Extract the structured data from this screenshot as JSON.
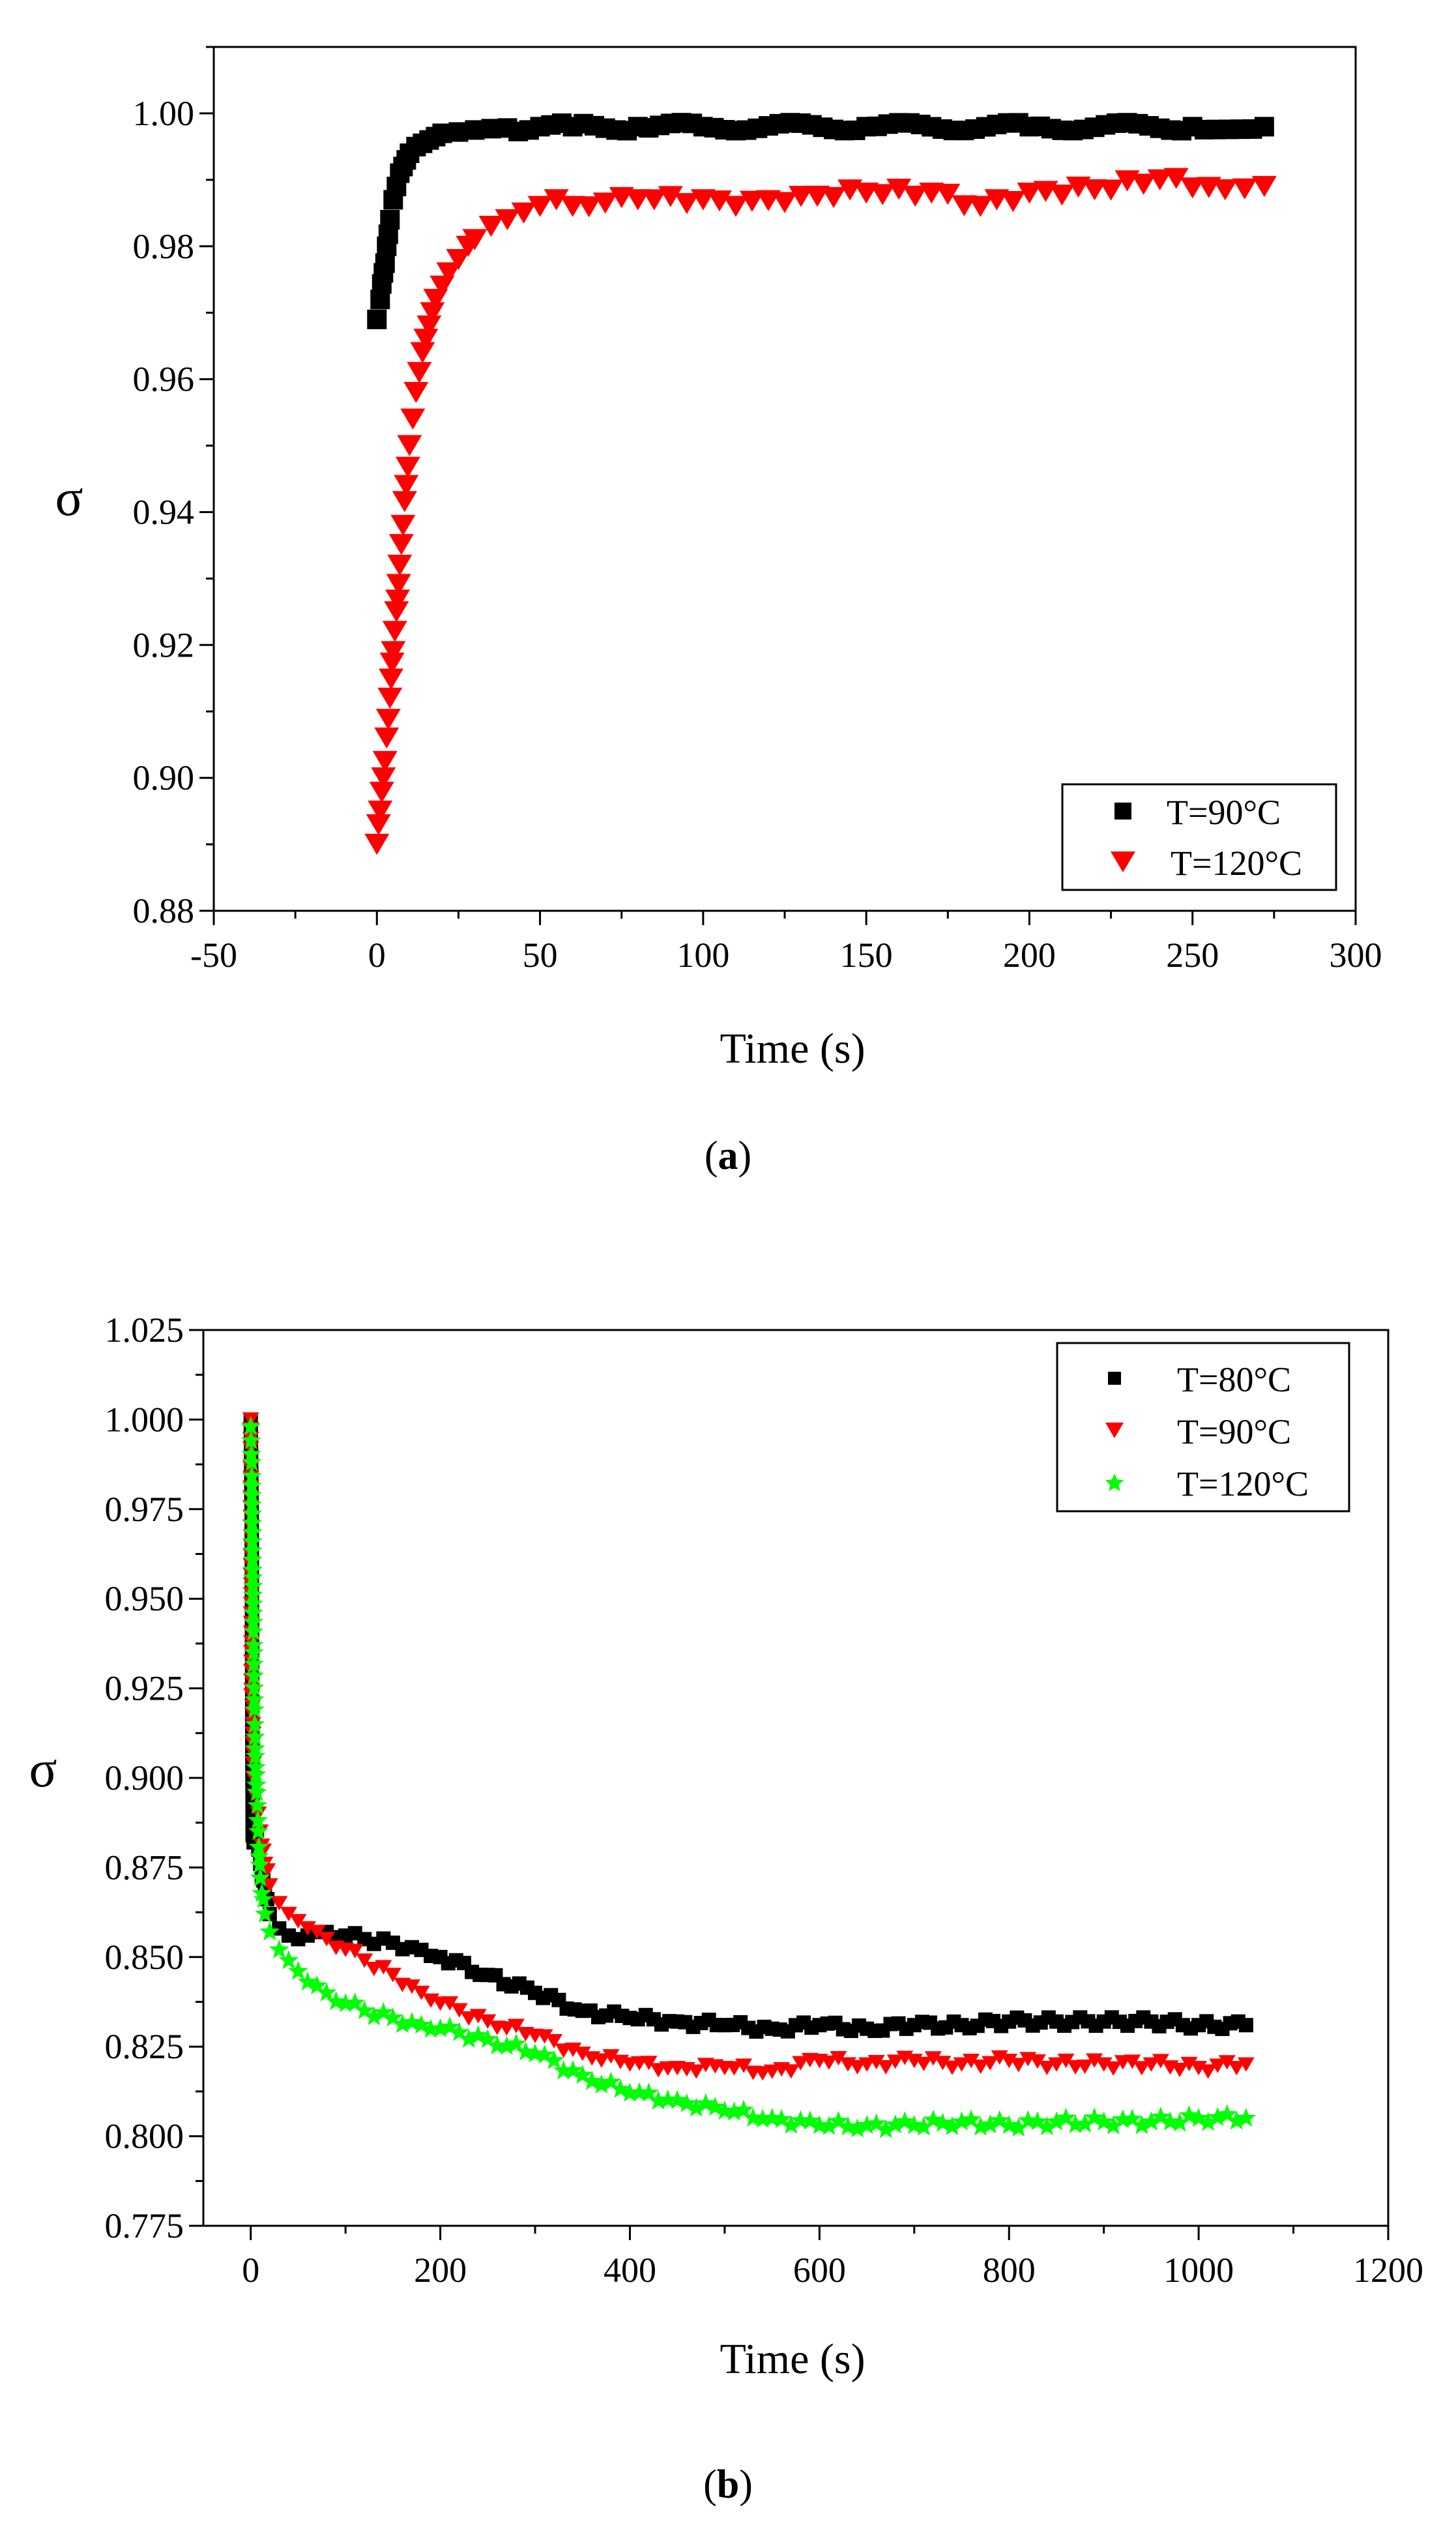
{
  "panels": [
    {
      "caption_open": "(",
      "caption_letter": "a",
      "caption_close": ")"
    },
    {
      "caption_open": "(",
      "caption_letter": "b",
      "caption_close": ")"
    }
  ],
  "chart_data": [
    {
      "type": "scatter",
      "title": "",
      "xlabel": "Time (s)",
      "ylabel": "σ",
      "xlim": [
        -50,
        300
      ],
      "ylim": [
        0.88,
        1.01
      ],
      "xticks": [
        -50,
        0,
        50,
        100,
        150,
        200,
        250,
        300
      ],
      "xtick_labels": [
        "-50",
        "0",
        "50",
        "100",
        "150",
        "200",
        "250",
        "300"
      ],
      "yticks": [
        0.88,
        0.9,
        0.92,
        0.94,
        0.96,
        0.98,
        1.0
      ],
      "ytick_labels": [
        "0.88",
        "0.90",
        "0.92",
        "0.94",
        "0.96",
        "0.98",
        "1.00"
      ],
      "legend_position": "bottom-right",
      "series": [
        {
          "name": "T=90°C",
          "marker": "square",
          "color": "#000000",
          "x": [
            0,
            1,
            2,
            3,
            4,
            5,
            6,
            7,
            8,
            9,
            10,
            12,
            14,
            16,
            18,
            20,
            25,
            30,
            35,
            40,
            50,
            60,
            80,
            100,
            150,
            200,
            250,
            272
          ],
          "y": [
            0.969,
            0.972,
            0.976,
            0.98,
            0.984,
            0.987,
            0.989,
            0.991,
            0.992,
            0.993,
            0.994,
            0.995,
            0.9955,
            0.996,
            0.9965,
            0.997,
            0.9972,
            0.9975,
            0.9977,
            0.9978,
            0.998,
            0.998,
            0.998,
            0.998,
            0.998,
            0.998,
            0.998,
            0.998
          ]
        },
        {
          "name": "T=120°C",
          "marker": "triangle-down",
          "color": "#ff0000",
          "x": [
            0,
            1,
            2,
            3,
            4,
            5,
            6,
            7,
            8,
            9,
            10,
            11,
            12,
            13,
            14,
            15,
            16,
            17,
            18,
            20,
            22,
            25,
            28,
            30,
            35,
            40,
            45,
            50,
            55,
            60,
            70,
            80,
            100,
            110,
            130,
            150,
            170,
            185,
            200,
            220,
            240,
            260,
            272
          ],
          "y": [
            0.89,
            0.895,
            0.9,
            0.906,
            0.912,
            0.919,
            0.925,
            0.932,
            0.938,
            0.944,
            0.95,
            0.954,
            0.958,
            0.961,
            0.964,
            0.966,
            0.968,
            0.97,
            0.972,
            0.974,
            0.976,
            0.978,
            0.98,
            0.981,
            0.983,
            0.984,
            0.985,
            0.986,
            0.987,
            0.986,
            0.9865,
            0.987,
            0.987,
            0.986,
            0.9875,
            0.988,
            0.988,
            0.986,
            0.988,
            0.9885,
            0.99,
            0.9885,
            0.989
          ]
        }
      ]
    },
    {
      "type": "scatter",
      "title": "",
      "xlabel": "Time (s)",
      "ylabel": "σ",
      "xlim": [
        -50,
        1200
      ],
      "ylim": [
        0.775,
        1.025
      ],
      "xticks": [
        0,
        200,
        400,
        600,
        800,
        1000,
        1200
      ],
      "xtick_labels": [
        "0",
        "200",
        "400",
        "600",
        "800",
        "1000",
        "1200"
      ],
      "yticks": [
        0.775,
        0.8,
        0.825,
        0.85,
        0.875,
        0.9,
        0.925,
        0.95,
        0.975,
        1.0,
        1.025
      ],
      "ytick_labels": [
        "0.775",
        "0.800",
        "0.825",
        "0.850",
        "0.875",
        "0.900",
        "0.925",
        "0.950",
        "0.975",
        "1.000",
        "1.025"
      ],
      "legend_position": "top-right",
      "series": [
        {
          "name": "T=80°C",
          "marker": "square",
          "color": "#000000",
          "x": [
            0,
            1,
            2,
            3,
            5,
            8,
            10,
            15,
            20,
            30,
            40,
            50,
            60,
            80,
            100,
            120,
            150,
            180,
            200,
            250,
            300,
            350,
            400,
            450,
            500,
            550,
            600,
            650,
            700,
            750,
            800,
            850,
            900,
            950,
            1000,
            1050
          ],
          "y": [
            1.0,
            0.974,
            0.884,
            0.882,
            0.885,
            0.88,
            0.876,
            0.868,
            0.862,
            0.858,
            0.856,
            0.855,
            0.856,
            0.857,
            0.856,
            0.855,
            0.854,
            0.852,
            0.85,
            0.845,
            0.84,
            0.835,
            0.833,
            0.832,
            0.831,
            0.83,
            0.831,
            0.83,
            0.831,
            0.831,
            0.832,
            0.832,
            0.832,
            0.832,
            0.831,
            0.831
          ]
        },
        {
          "name": "T=90°C",
          "marker": "triangle-down",
          "color": "#ff0000",
          "x": [
            0,
            1,
            2,
            3,
            5,
            8,
            10,
            15,
            20,
            30,
            40,
            50,
            60,
            80,
            100,
            120,
            150,
            180,
            200,
            250,
            300,
            350,
            400,
            450,
            500,
            550,
            600,
            650,
            700,
            750,
            800,
            850,
            900,
            950,
            1000,
            1050
          ],
          "y": [
            1.0,
            0.923,
            0.92,
            0.9,
            0.895,
            0.89,
            0.885,
            0.876,
            0.87,
            0.865,
            0.862,
            0.86,
            0.858,
            0.855,
            0.852,
            0.849,
            0.845,
            0.84,
            0.837,
            0.832,
            0.828,
            0.823,
            0.82,
            0.819,
            0.819,
            0.818,
            0.821,
            0.82,
            0.821,
            0.82,
            0.821,
            0.82,
            0.82,
            0.82,
            0.819,
            0.82
          ]
        },
        {
          "name": "T=120°C",
          "marker": "star",
          "color": "#00ff00",
          "x": [
            0,
            1,
            2,
            3,
            4,
            5,
            6,
            8,
            10,
            15,
            20,
            30,
            40,
            50,
            60,
            80,
            100,
            120,
            150,
            180,
            200,
            250,
            300,
            350,
            400,
            450,
            500,
            550,
            600,
            650,
            700,
            750,
            800,
            850,
            900,
            950,
            1000,
            1050
          ],
          "y": [
            0.998,
            0.988,
            0.958,
            0.937,
            0.919,
            0.906,
            0.898,
            0.885,
            0.872,
            0.862,
            0.857,
            0.852,
            0.849,
            0.846,
            0.843,
            0.84,
            0.837,
            0.835,
            0.833,
            0.831,
            0.83,
            0.827,
            0.823,
            0.817,
            0.812,
            0.81,
            0.807,
            0.805,
            0.803,
            0.803,
            0.803,
            0.804,
            0.803,
            0.804,
            0.804,
            0.804,
            0.805,
            0.805
          ]
        }
      ]
    }
  ]
}
